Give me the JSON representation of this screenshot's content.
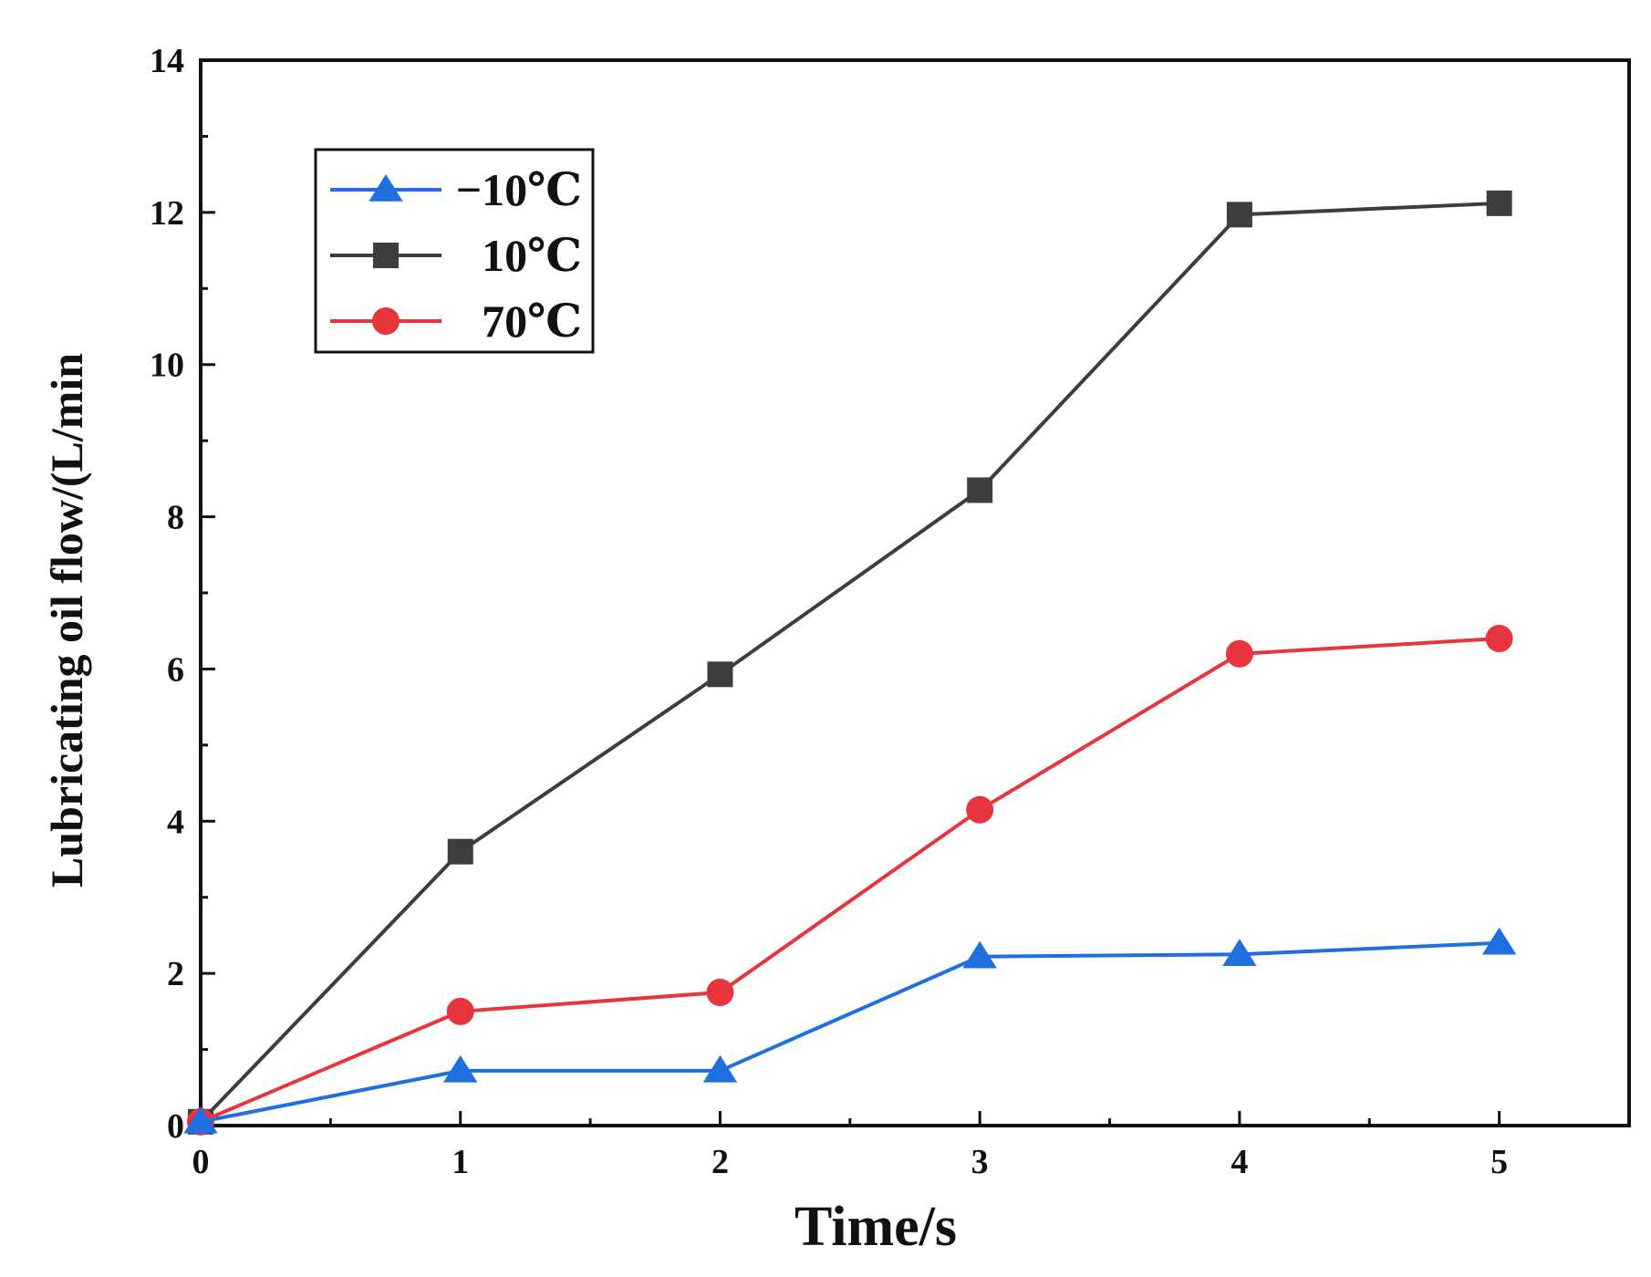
{
  "chart_data": {
    "type": "line",
    "title": "",
    "xlabel": "Time/s",
    "ylabel": "Lubricating oil flow/(L/min",
    "xlim": [
      0,
      5.5
    ],
    "ylim": [
      0,
      14
    ],
    "x_ticks": [
      0,
      1,
      2,
      3,
      4,
      5
    ],
    "x_tick_labels": [
      "0",
      "1",
      "2",
      "3",
      "4",
      "5"
    ],
    "y_ticks": [
      0,
      2,
      4,
      6,
      8,
      10,
      12,
      14
    ],
    "y_tick_labels": [
      "0",
      "2",
      "4",
      "6",
      "8",
      "10",
      "12",
      "14"
    ],
    "legend_position": "top-left",
    "grid": false,
    "x": [
      0,
      1,
      2,
      3,
      4,
      5
    ],
    "series": [
      {
        "name": "−10℃",
        "marker": "triangle",
        "color": "#1f6fe0",
        "values": [
          0.05,
          0.72,
          0.72,
          2.22,
          2.25,
          2.4
        ]
      },
      {
        "name": "10℃",
        "marker": "square",
        "color": "#3d3d3d",
        "values": [
          0.05,
          3.6,
          5.93,
          8.35,
          11.97,
          12.12
        ]
      },
      {
        "name": "70℃",
        "marker": "circle",
        "color": "#e8343c",
        "values": [
          0.05,
          1.5,
          1.75,
          4.15,
          6.2,
          6.4
        ]
      }
    ]
  }
}
